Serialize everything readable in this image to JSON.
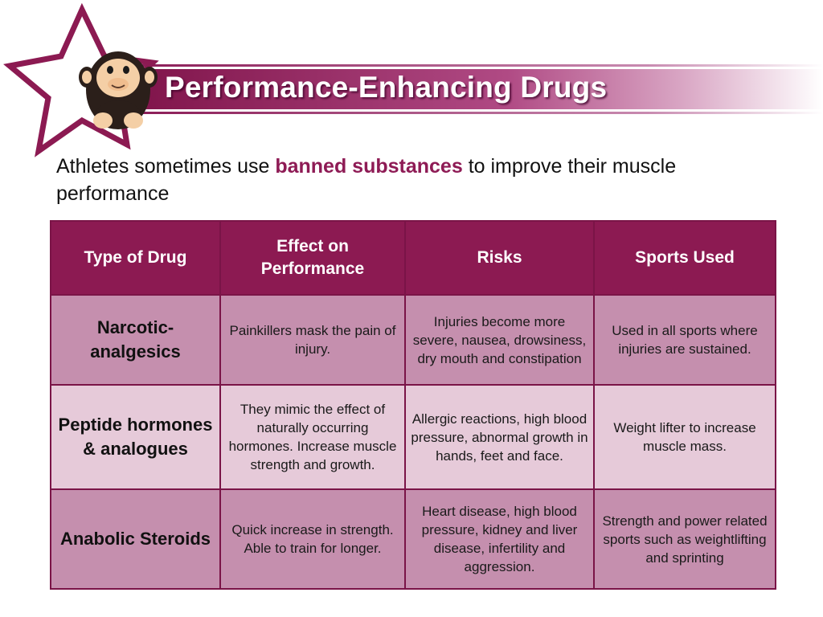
{
  "header": {
    "title": "Performance-Enhancing Drugs",
    "mascot": "monkey-mascot-icon",
    "star": "star-outline-icon"
  },
  "intro": {
    "before": "Athletes sometimes use ",
    "highlight": "banned substances",
    "after": " to improve their muscle performance"
  },
  "table": {
    "headers": [
      "Type of Drug",
      "Effect on Performance",
      "Risks",
      "Sports Used"
    ],
    "rows": [
      {
        "type": "Narcotic-analgesics",
        "effect": "Painkillers mask the pain of injury.",
        "risks": "Injuries become more severe, nausea, drowsiness, dry mouth and constipation",
        "sports": "Used in all sports where injuries are sustained."
      },
      {
        "type": "Peptide hormones & analogues",
        "effect": "They mimic the effect of naturally occurring hormones. Increase muscle strength and growth.",
        "risks": "Allergic reactions, high blood pressure, abnormal growth in hands, feet and face.",
        "sports": "Weight lifter to increase muscle mass."
      },
      {
        "type": "Anabolic Steroids",
        "effect": "Quick increase in strength. Able to train for longer.",
        "risks": "Heart disease, high blood pressure, kidney and liver disease, infertility and aggression.",
        "sports": "Strength and power related sports such as weightlifting and sprinting"
      }
    ]
  },
  "colors": {
    "accent": "#8c1a52",
    "highlight_text": "#8e1b55",
    "row_dark": "#c58fae",
    "row_light": "#e6cad9"
  }
}
